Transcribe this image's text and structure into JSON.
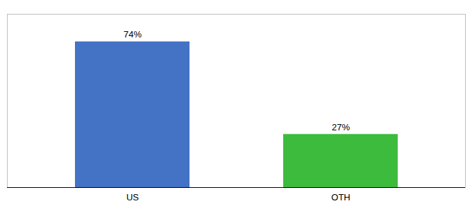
{
  "chart_data": {
    "type": "bar",
    "categories": [
      "US",
      "OTH"
    ],
    "values": [
      74,
      27
    ],
    "value_labels": [
      "74%",
      "27%"
    ],
    "colors": [
      "#4472c4",
      "#3dbb3d"
    ],
    "ylim": [
      0,
      88
    ],
    "data_labels": true,
    "tick_labels": "x"
  }
}
